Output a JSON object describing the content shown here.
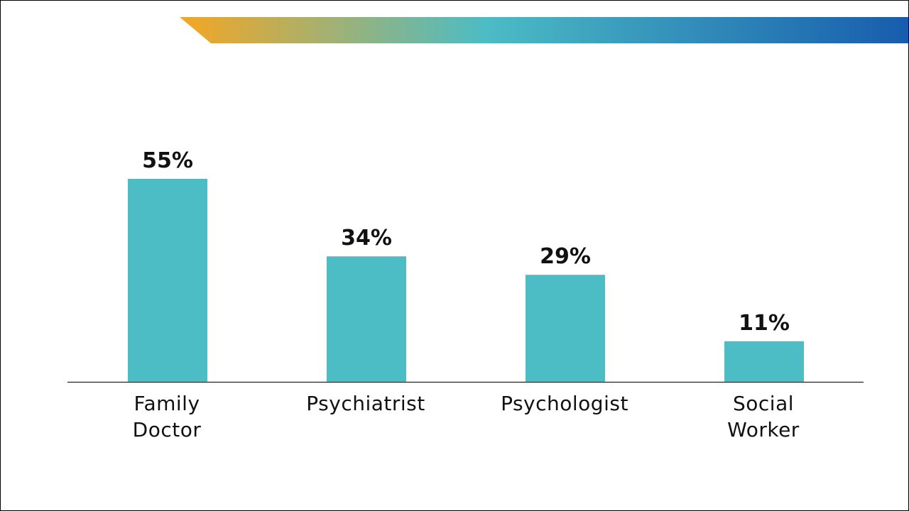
{
  "chart_data": {
    "type": "bar",
    "categories": [
      "Family Doctor",
      "Psychiatrist",
      "Psychologist",
      "Social Worker"
    ],
    "values": [
      55,
      34,
      29,
      11
    ],
    "value_labels": [
      "55%",
      "34%",
      "29%",
      "11%"
    ],
    "color": "#4cbcc5"
  }
}
